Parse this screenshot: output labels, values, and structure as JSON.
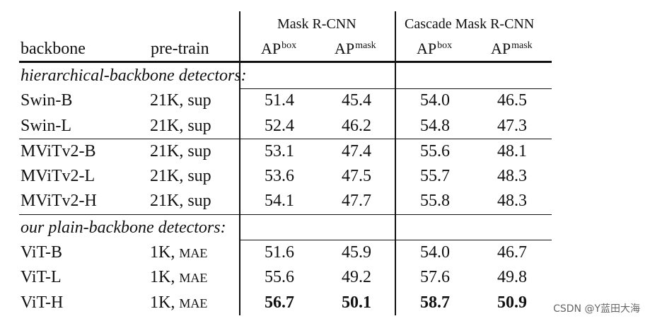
{
  "table": {
    "groups": [
      "Mask R-CNN",
      "Cascade Mask R-CNN"
    ],
    "columns": {
      "backbone": "backbone",
      "pretrain": "pre-train",
      "metrics": [
        {
          "base": "AP",
          "sup": "box"
        },
        {
          "base": "AP",
          "sup": "mask"
        },
        {
          "base": "AP",
          "sup": "box"
        },
        {
          "base": "AP",
          "sup": "mask"
        }
      ]
    },
    "sections": [
      {
        "title": "hierarchical-backbone detectors:",
        "rows": [
          {
            "backbone": "Swin-B",
            "pretrain": "21K, sup",
            "values": [
              "51.4",
              "45.4",
              "54.0",
              "46.5"
            ]
          },
          {
            "backbone": "Swin-L",
            "pretrain": "21K, sup",
            "values": [
              "52.4",
              "46.2",
              "54.8",
              "47.3"
            ]
          },
          {
            "backbone": "MViTv2-B",
            "pretrain": "21K, sup",
            "values": [
              "53.1",
              "47.4",
              "55.6",
              "48.1"
            ]
          },
          {
            "backbone": "MViTv2-L",
            "pretrain": "21K, sup",
            "values": [
              "53.6",
              "47.5",
              "55.7",
              "48.3"
            ]
          },
          {
            "backbone": "MViTv2-H",
            "pretrain": "21K, sup",
            "values": [
              "54.1",
              "47.7",
              "55.8",
              "48.3"
            ]
          }
        ]
      },
      {
        "title": "our plain-backbone detectors:",
        "rows": [
          {
            "backbone": "ViT-B",
            "pretrain_a": "1K,",
            "pretrain_b": "MAE",
            "values": [
              "51.6",
              "45.9",
              "54.0",
              "46.7"
            ]
          },
          {
            "backbone": "ViT-L",
            "pretrain_a": "1K,",
            "pretrain_b": "MAE",
            "values": [
              "55.6",
              "49.2",
              "57.6",
              "49.8"
            ]
          },
          {
            "backbone": "ViT-H",
            "pretrain_a": "1K,",
            "pretrain_b": "MAE",
            "values": [
              "56.7",
              "50.1",
              "58.7",
              "50.9"
            ]
          }
        ]
      }
    ]
  },
  "watermark": "CSDN @Y蓝田大海"
}
